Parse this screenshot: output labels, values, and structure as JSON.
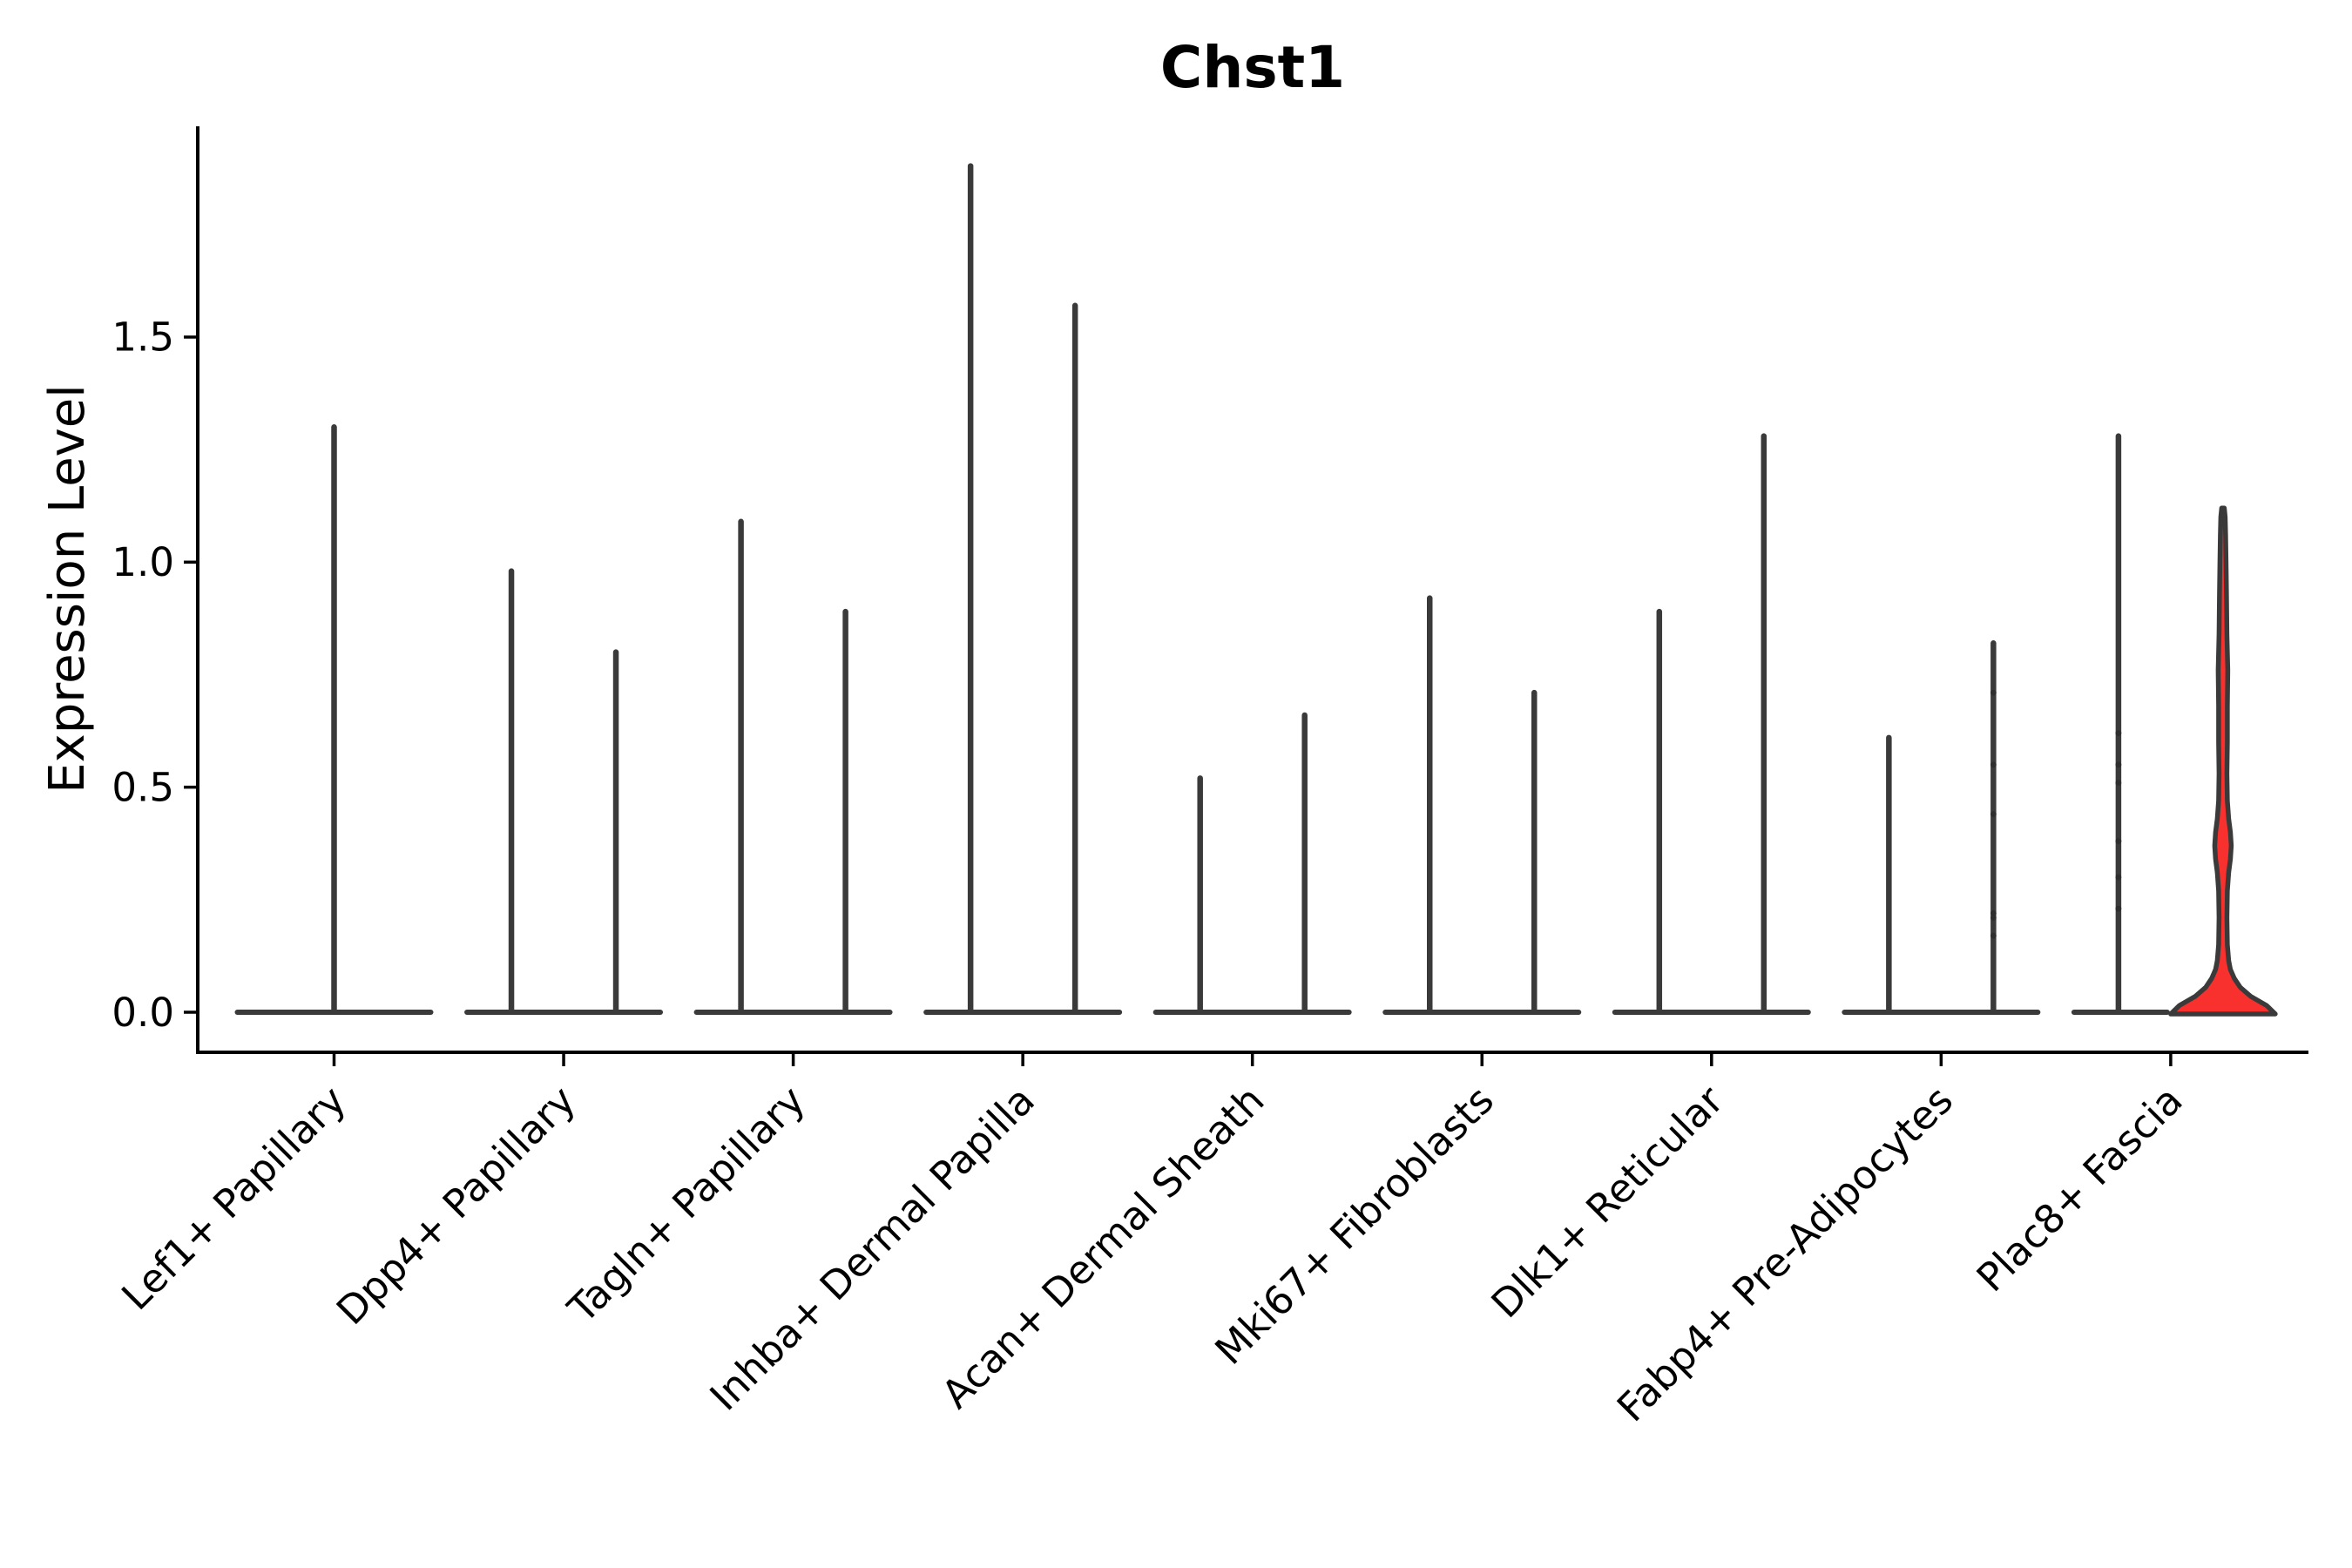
{
  "figure": {
    "background": "#ffffff"
  },
  "chart_data": {
    "type": "violin",
    "title": "Chst1",
    "xlabel": "",
    "ylabel": "Expression Level",
    "ylim": [
      -0.09,
      1.97
    ],
    "grid": false,
    "legend": "none",
    "yticks": {
      "values": [
        0.0,
        0.5,
        1.0,
        1.5
      ],
      "labels": [
        "0.0",
        "0.5",
        "1.0",
        "1.5"
      ]
    },
    "colors": {
      "violin_edge": "#3a3a3a",
      "highlight_fill": "#f8312e",
      "axis": "#000000",
      "jitter_dot": "#2e2e2e"
    },
    "categories": [
      "Lef1+ Papillary",
      "Dpp4+ Papillary",
      "Tagln+ Papillary",
      "Inhba+ Dermal Papilla",
      "Acan+ Dermal Sheath",
      "Mki67+ Fibroblasts",
      "Dlk1+ Reticular",
      "Fabp4+ Pre-Adipocytes",
      "Plac8+ Fascia"
    ],
    "groups": [
      {
        "label": "Lef1+ Papillary",
        "violins": [
          {
            "pos": "center",
            "max": 1.3
          }
        ]
      },
      {
        "label": "Dpp4+ Papillary",
        "violins": [
          {
            "pos": "left",
            "max": 0.98
          },
          {
            "pos": "right",
            "max": 0.8
          }
        ]
      },
      {
        "label": "Tagln+ Papillary",
        "violins": [
          {
            "pos": "left",
            "max": 1.09
          },
          {
            "pos": "right",
            "max": 0.89
          }
        ]
      },
      {
        "label": "Inhba+ Dermal Papilla",
        "violins": [
          {
            "pos": "left",
            "max": 1.88
          },
          {
            "pos": "right",
            "max": 1.57
          }
        ]
      },
      {
        "label": "Acan+ Dermal Sheath",
        "violins": [
          {
            "pos": "left",
            "max": 0.52
          },
          {
            "pos": "right",
            "max": 0.66
          }
        ]
      },
      {
        "label": "Mki67+ Fibroblasts",
        "violins": [
          {
            "pos": "left",
            "max": 0.92
          },
          {
            "pos": "right",
            "max": 0.71
          }
        ]
      },
      {
        "label": "Dlk1+ Reticular",
        "violins": [
          {
            "pos": "left",
            "max": 0.89
          },
          {
            "pos": "right",
            "max": 1.28
          }
        ]
      },
      {
        "label": "Fabp4+ Pre-Adipocytes",
        "violins": [
          {
            "pos": "left",
            "max": 0.61
          },
          {
            "pos": "right",
            "max": 0.82,
            "jitter_points": [
              0.71,
              0.55,
              0.44,
              0.22,
              0.21,
              0.17
            ]
          }
        ]
      },
      {
        "label": "Plac8+ Fascia",
        "violins": [
          {
            "pos": "left",
            "max": 1.28,
            "jitter_points": [
              0.62,
              0.55,
              0.51,
              0.38,
              0.3,
              0.23
            ]
          },
          {
            "pos": "right",
            "max": 1.12,
            "highlight": true,
            "density_profile": [
              [
                0.0,
                60.0
              ],
              [
                0.015,
                50.0
              ],
              [
                0.035,
                32.0
              ],
              [
                0.055,
                20.0
              ],
              [
                0.075,
                13.0
              ],
              [
                0.095,
                8.5
              ],
              [
                0.115,
                6.5
              ],
              [
                0.15,
                5.0
              ],
              [
                0.21,
                4.5
              ],
              [
                0.27,
                5.0
              ],
              [
                0.31,
                6.5
              ],
              [
                0.34,
                8.5
              ],
              [
                0.37,
                9.5
              ],
              [
                0.4,
                8.5
              ],
              [
                0.43,
                6.5
              ],
              [
                0.47,
                5.0
              ],
              [
                0.53,
                4.5
              ],
              [
                0.6,
                5.0
              ],
              [
                0.68,
                5.0
              ],
              [
                0.76,
                5.5
              ],
              [
                0.84,
                4.5
              ],
              [
                0.93,
                4.0
              ],
              [
                1.0,
                3.5
              ],
              [
                1.06,
                3.0
              ],
              [
                1.1,
                2.5
              ],
              [
                1.12,
                1.5
              ]
            ]
          }
        ]
      }
    ]
  }
}
